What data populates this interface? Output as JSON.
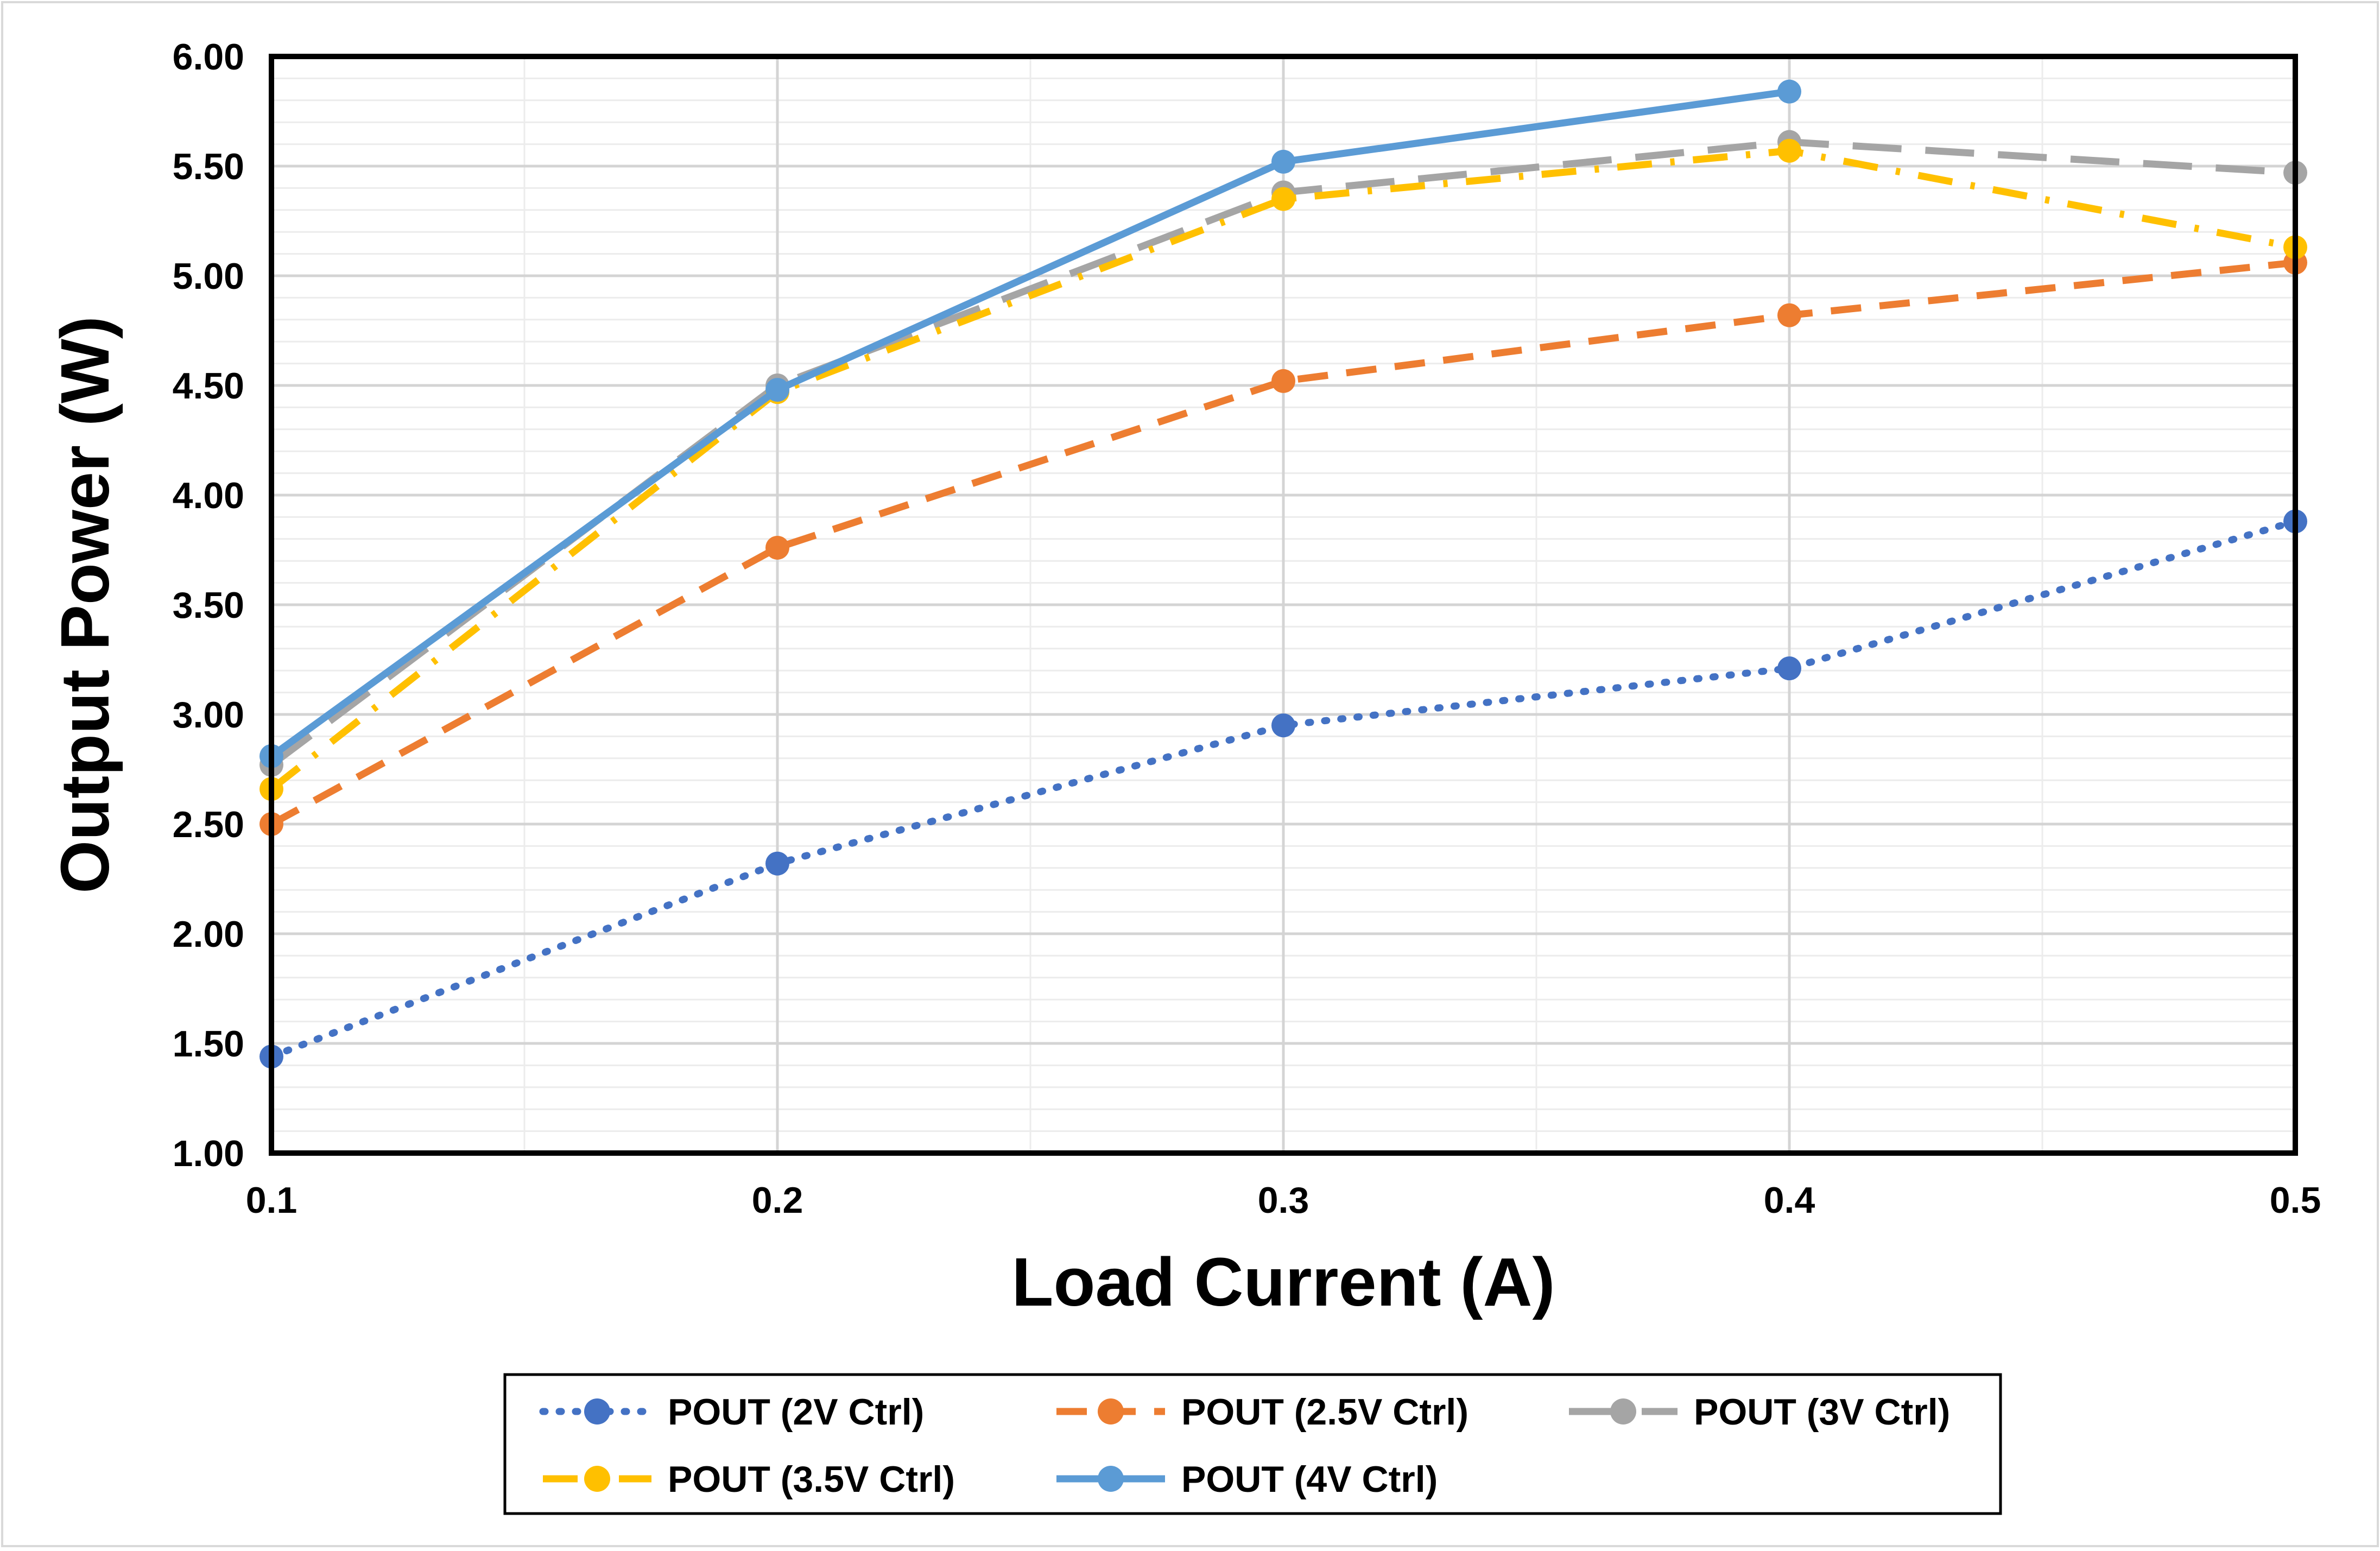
{
  "chart_data": {
    "type": "line",
    "title": "",
    "xlabel": "Load Current (A)",
    "ylabel": "Output Power (W)",
    "x": [
      0.1,
      0.2,
      0.3,
      0.4,
      0.5
    ],
    "x_tick_labels": [
      "0.1",
      "0.2",
      "0.3",
      "0.4",
      "0.5"
    ],
    "xlim": [
      0.1,
      0.5
    ],
    "ylim": [
      1.0,
      6.0
    ],
    "y_ticks": [
      1.0,
      1.5,
      2.0,
      2.5,
      3.0,
      3.5,
      4.0,
      4.5,
      5.0,
      5.5,
      6.0
    ],
    "y_tick_labels": [
      "1.00",
      "1.50",
      "2.00",
      "2.50",
      "3.00",
      "3.50",
      "4.00",
      "4.50",
      "5.00",
      "5.50",
      "6.00"
    ],
    "grid": true,
    "legend_position": "bottom",
    "series": [
      {
        "name": "POUT (2V Ctrl)",
        "color": "#4472C4",
        "style": "dotted",
        "x": [
          0.1,
          0.2,
          0.3,
          0.4,
          0.5
        ],
        "values": [
          1.44,
          2.32,
          2.95,
          3.21,
          3.88
        ]
      },
      {
        "name": "POUT (2.5V Ctrl)",
        "color": "#ED7D31",
        "style": "dashed",
        "x": [
          0.1,
          0.2,
          0.3,
          0.4,
          0.5
        ],
        "values": [
          2.5,
          3.76,
          4.52,
          4.82,
          5.06
        ]
      },
      {
        "name": "POUT (3V Ctrl)",
        "color": "#A5A5A5",
        "style": "long-dash",
        "x": [
          0.1,
          0.2,
          0.3,
          0.4,
          0.5
        ],
        "values": [
          2.77,
          4.5,
          5.38,
          5.61,
          5.47
        ]
      },
      {
        "name": "POUT (3.5V Ctrl)",
        "color": "#FFC000",
        "style": "dash-dot",
        "x": [
          0.1,
          0.2,
          0.3,
          0.4,
          0.5
        ],
        "values": [
          2.66,
          4.47,
          5.35,
          5.57,
          5.13
        ]
      },
      {
        "name": "POUT (4V Ctrl)",
        "color": "#5B9BD5",
        "style": "solid",
        "x": [
          0.1,
          0.2,
          0.3,
          0.4
        ],
        "values": [
          2.81,
          4.48,
          5.52,
          5.84
        ]
      }
    ]
  }
}
